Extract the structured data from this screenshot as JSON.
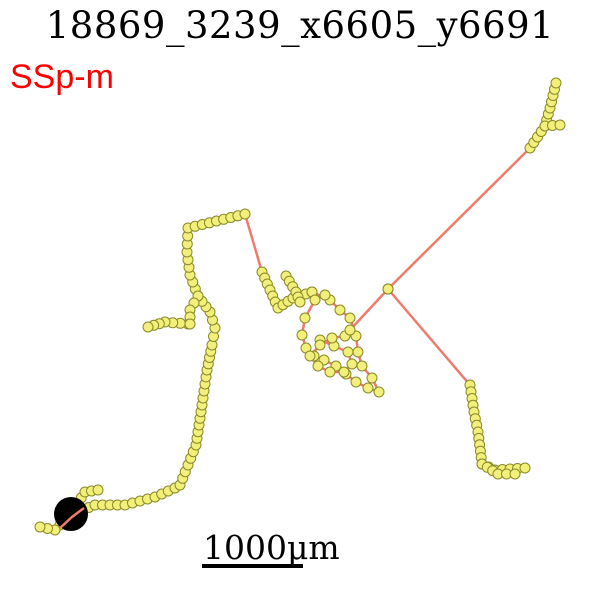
{
  "title": "18869_3239_x6605_y6691",
  "region_label": "SSp-m",
  "scale_bar": {
    "label": "1000μm"
  },
  "colors": {
    "branch": "#f07a6e",
    "node_fill": "#f2f07a",
    "node_stroke": "#8a8a2a",
    "soma": "#000000",
    "region_text": "#ff0000"
  }
}
